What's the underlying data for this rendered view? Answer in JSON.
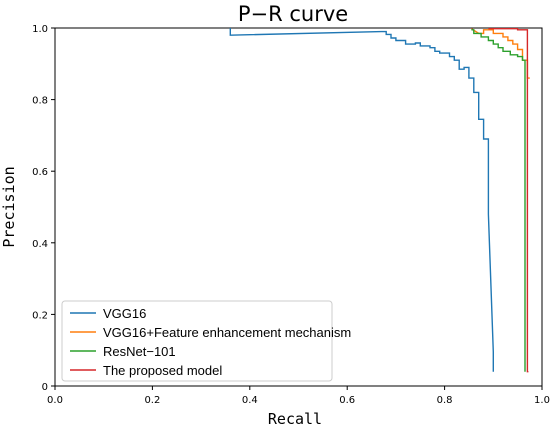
{
  "chart_data": {
    "type": "line",
    "title": "P−R curve",
    "xlabel": "Recall",
    "ylabel": "Precision",
    "xlim": [
      0,
      1
    ],
    "ylim": [
      0,
      1
    ],
    "xticks": [
      "0.0",
      "0.2",
      "0.4",
      "0.6",
      "0.8",
      "1.0"
    ],
    "yticks": [
      "0",
      "0.2",
      "0.4",
      "0.6",
      "0.8",
      "1.0"
    ],
    "legend_position": "lower-left",
    "grid": false,
    "series": [
      {
        "name": "VGG16",
        "color": "#1f77b4",
        "x": [
          0.36,
          0.36,
          0.36,
          0.36,
          0.36,
          0.36,
          0.36,
          0.67,
          0.68,
          0.68,
          0.69,
          0.69,
          0.7,
          0.7,
          0.72,
          0.72,
          0.74,
          0.74,
          0.75,
          0.75,
          0.77,
          0.77,
          0.78,
          0.78,
          0.79,
          0.79,
          0.81,
          0.81,
          0.82,
          0.82,
          0.83,
          0.83,
          0.84,
          0.84,
          0.85,
          0.85,
          0.85,
          0.86,
          0.86,
          0.86,
          0.87,
          0.87,
          0.87,
          0.88,
          0.88,
          0.88,
          0.89,
          0.89,
          0.89,
          0.89,
          0.9,
          0.9,
          0.9
        ],
        "y": [
          1.0,
          0.995,
          0.993,
          0.99,
          0.987,
          0.984,
          0.98,
          0.99,
          0.99,
          0.982,
          0.982,
          0.972,
          0.972,
          0.965,
          0.965,
          0.955,
          0.955,
          0.958,
          0.958,
          0.95,
          0.95,
          0.945,
          0.945,
          0.935,
          0.935,
          0.93,
          0.93,
          0.92,
          0.92,
          0.91,
          0.91,
          0.885,
          0.885,
          0.89,
          0.89,
          0.86,
          0.86,
          0.86,
          0.84,
          0.82,
          0.82,
          0.78,
          0.745,
          0.745,
          0.7,
          0.69,
          0.69,
          0.49,
          0.48,
          0.48,
          0.095,
          0.04,
          0.04
        ]
      },
      {
        "name": "VGG16+Feature enhancement mechanism",
        "color": "#ff7f0e",
        "x": [
          0.855,
          0.87,
          0.88,
          0.88,
          0.9,
          0.9,
          0.92,
          0.92,
          0.93,
          0.93,
          0.94,
          0.94,
          0.95,
          0.95,
          0.96,
          0.96,
          0.97,
          0.97,
          0.975
        ],
        "y": [
          0.998,
          0.985,
          0.985,
          0.995,
          0.995,
          0.985,
          0.985,
          0.975,
          0.975,
          0.965,
          0.965,
          0.955,
          0.955,
          0.94,
          0.94,
          0.91,
          0.91,
          0.86,
          0.86
        ]
      },
      {
        "name": "ResNet−101",
        "color": "#2ca02c",
        "x": [
          0.855,
          0.86,
          0.86,
          0.875,
          0.875,
          0.89,
          0.89,
          0.9,
          0.9,
          0.91,
          0.91,
          0.92,
          0.92,
          0.935,
          0.935,
          0.95,
          0.95,
          0.96,
          0.96,
          0.965,
          0.965,
          0.965
        ],
        "y": [
          0.995,
          0.995,
          0.985,
          0.985,
          0.975,
          0.975,
          0.965,
          0.965,
          0.955,
          0.955,
          0.945,
          0.945,
          0.935,
          0.935,
          0.925,
          0.925,
          0.92,
          0.92,
          0.91,
          0.91,
          0.08,
          0.04
        ]
      },
      {
        "name": "The proposed model",
        "color": "#d62728",
        "x": [
          0.89,
          0.95,
          0.95,
          0.97,
          0.97,
          0.97,
          0.97,
          0.972
        ],
        "y": [
          0.998,
          0.998,
          0.995,
          0.995,
          0.93,
          0.93,
          0.04,
          0.04
        ]
      }
    ]
  }
}
